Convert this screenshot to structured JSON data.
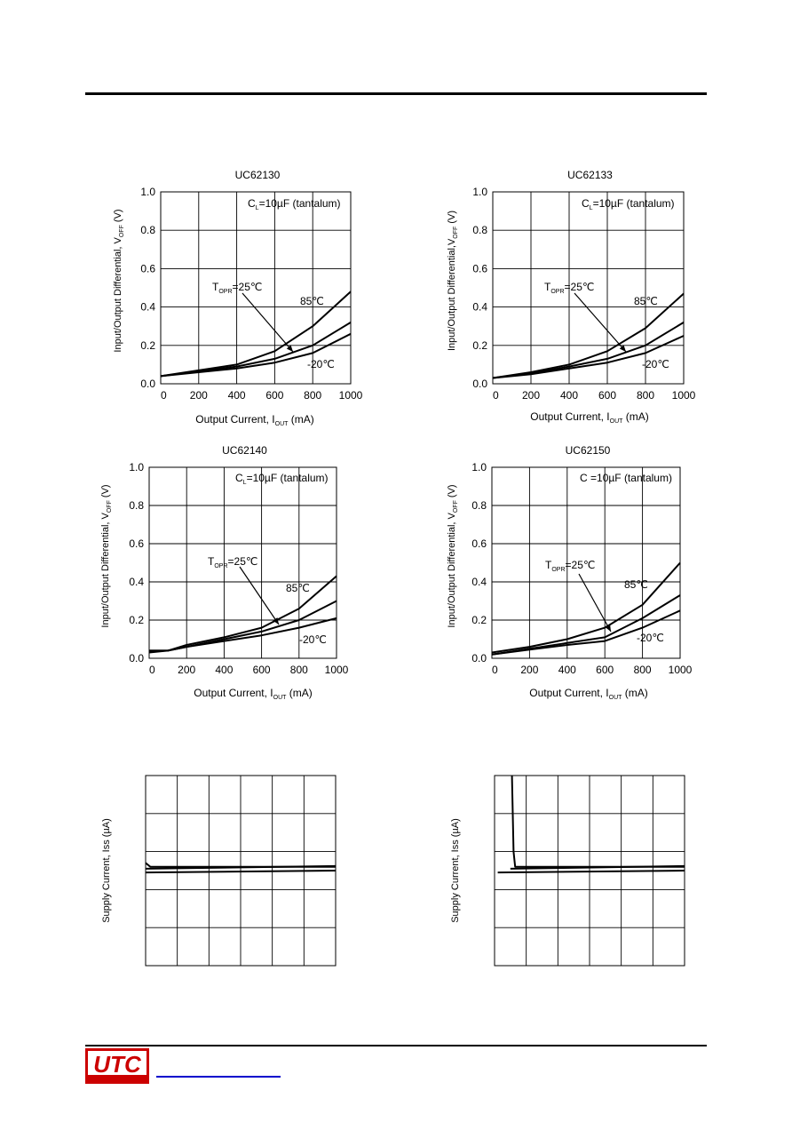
{
  "logo": {
    "text": "UTC",
    "color": "#cc0000"
  },
  "charts": [
    {
      "chart_data": {
        "type": "line",
        "title": "UC62130",
        "xlabel_main": "Output Current, I",
        "xlabel_sub": "OUT",
        "xlabel_unit": " (mA)",
        "ylabel_main": "Input/Output Differential, V",
        "ylabel_sub": "OFF",
        "ylabel_unit": " (V)",
        "xlim": [
          0,
          1000
        ],
        "ylim": [
          0,
          1.0
        ],
        "xticks": [
          "0",
          "200",
          "400",
          "600",
          "800",
          "1000"
        ],
        "yticks": [
          "0.0",
          "0.2",
          "0.4",
          "0.6",
          "0.8",
          "1.0"
        ],
        "grid": true,
        "condition": {
          "main": "C",
          "sub": "L",
          "rest": "=10µF (tantalum)"
        },
        "annotations": [
          {
            "main": "T",
            "sub": "OPR",
            "rest": "=25℃"
          },
          {
            "main": "85℃",
            "sub": "",
            "rest": ""
          },
          {
            "main": "-20℃",
            "sub": "",
            "rest": ""
          }
        ],
        "series": [
          {
            "x": [
              0,
              200,
              400,
              600,
              800,
              1000
            ],
            "values": [
              0.04,
              0.07,
              0.1,
              0.17,
              0.3,
              0.48
            ]
          },
          {
            "x": [
              0,
              200,
              400,
              600,
              800,
              1000
            ],
            "values": [
              0.04,
              0.065,
              0.09,
              0.13,
              0.2,
              0.32
            ]
          },
          {
            "x": [
              0,
              200,
              400,
              600,
              800,
              1000
            ],
            "values": [
              0.04,
              0.06,
              0.08,
              0.11,
              0.16,
              0.26
            ]
          }
        ]
      }
    },
    {
      "chart_data": {
        "type": "line",
        "title": "UC62133",
        "xlabel_main": "Output Current, I",
        "xlabel_sub": "OUT",
        "xlabel_unit": " (mA)",
        "ylabel_main": "Input/Output Differential,V",
        "ylabel_sub": "OFF",
        "ylabel_unit": " (V)",
        "xlim": [
          0,
          1000
        ],
        "ylim": [
          0,
          1.0
        ],
        "xticks": [
          "0",
          "200",
          "400",
          "600",
          "800",
          "1000"
        ],
        "yticks": [
          "0.0",
          "0.2",
          "0.4",
          "0.6",
          "0.8",
          "1.0"
        ],
        "grid": true,
        "condition": {
          "main": "C",
          "sub": "L",
          "rest": "=10µF (tantalum)"
        },
        "annotations": [
          {
            "main": "T",
            "sub": "OPR",
            "rest": "=25℃"
          },
          {
            "main": "85℃",
            "sub": "",
            "rest": ""
          },
          {
            "main": "-20℃",
            "sub": "",
            "rest": ""
          }
        ],
        "series": [
          {
            "x": [
              0,
              200,
              400,
              600,
              800,
              1000
            ],
            "values": [
              0.03,
              0.06,
              0.1,
              0.17,
              0.29,
              0.47
            ]
          },
          {
            "x": [
              0,
              200,
              400,
              600,
              800,
              1000
            ],
            "values": [
              0.03,
              0.055,
              0.09,
              0.13,
              0.2,
              0.32
            ]
          },
          {
            "x": [
              0,
              200,
              400,
              600,
              800,
              1000
            ],
            "values": [
              0.03,
              0.05,
              0.08,
              0.11,
              0.16,
              0.25
            ]
          }
        ]
      }
    },
    {
      "chart_data": {
        "type": "line",
        "title": "UC62140",
        "xlabel_main": "Output Current, I",
        "xlabel_sub": "OUT",
        "xlabel_unit": " (mA)",
        "ylabel_main": "Input/Output Differential, V",
        "ylabel_sub": "OFF",
        "ylabel_unit": " (V)",
        "xlim": [
          0,
          1000
        ],
        "ylim": [
          0,
          1.0
        ],
        "xticks": [
          "0",
          "200",
          "400",
          "600",
          "800",
          "1000"
        ],
        "yticks": [
          "0.0",
          "0.2",
          "0.4",
          "0.6",
          "0.8",
          "1.0"
        ],
        "grid": true,
        "condition": {
          "main": "C",
          "sub": "L",
          "rest": "=10µF (tantalum)"
        },
        "annotations": [
          {
            "main": "T",
            "sub": "OPR",
            "rest": "=25℃"
          },
          {
            "main": "85℃",
            "sub": "",
            "rest": ""
          },
          {
            "main": "-20℃",
            "sub": "",
            "rest": ""
          }
        ],
        "series": [
          {
            "x": [
              0,
              100,
              200,
              400,
              600,
              800,
              1000
            ],
            "values": [
              0.04,
              0.04,
              0.07,
              0.11,
              0.16,
              0.26,
              0.43
            ]
          },
          {
            "x": [
              0,
              100,
              200,
              400,
              600,
              800,
              1000
            ],
            "values": [
              0.04,
              0.04,
              0.06,
              0.1,
              0.14,
              0.2,
              0.3
            ]
          },
          {
            "x": [
              0,
              100,
              200,
              400,
              600,
              800,
              1000
            ],
            "values": [
              0.03,
              0.04,
              0.06,
              0.09,
              0.12,
              0.16,
              0.21
            ]
          }
        ]
      }
    },
    {
      "chart_data": {
        "type": "line",
        "title": "UC62150",
        "xlabel_main": "Output Current, I",
        "xlabel_sub": "OUT",
        "xlabel_unit": " (mA)",
        "ylabel_main": "Input/Output Differential, V",
        "ylabel_sub": "OFF",
        "ylabel_unit": " (V)",
        "xlim": [
          0,
          1000
        ],
        "ylim": [
          0,
          1.0
        ],
        "xticks": [
          "0",
          "200",
          "400",
          "600",
          "800",
          "1000"
        ],
        "yticks": [
          "0.0",
          "0.2",
          "0.4",
          "0.6",
          "0.8",
          "1.0"
        ],
        "grid": true,
        "condition": {
          "main": "C",
          "sub": "",
          "rest": "  =10µF (tantalum)"
        },
        "annotations": [
          {
            "main": "T",
            "sub": "OPR",
            "rest": "=25℃"
          },
          {
            "main": "85℃",
            "sub": "",
            "rest": ""
          },
          {
            "main": "-20℃",
            "sub": "",
            "rest": ""
          }
        ],
        "series": [
          {
            "x": [
              0,
              200,
              400,
              600,
              800,
              1000
            ],
            "values": [
              0.03,
              0.06,
              0.1,
              0.16,
              0.28,
              0.5
            ]
          },
          {
            "x": [
              0,
              200,
              400,
              600,
              800,
              1000
            ],
            "values": [
              0.02,
              0.05,
              0.08,
              0.11,
              0.21,
              0.33
            ]
          },
          {
            "x": [
              0,
              200,
              400,
              600,
              800,
              1000
            ],
            "values": [
              0.02,
              0.045,
              0.07,
              0.09,
              0.16,
              0.25
            ]
          }
        ]
      }
    },
    {
      "chart_data": {
        "type": "line",
        "title": "",
        "ylabel": "Supply Current, Iss (µA)",
        "xlim": [
          0,
          6
        ],
        "ylim": [
          0,
          5
        ],
        "grid": true,
        "series": [
          {
            "x": [
              0,
              0.15,
              6
            ],
            "values": [
              2.7,
              2.6,
              2.6
            ]
          },
          {
            "x": [
              0,
              6
            ],
            "values": [
              2.55,
              2.62
            ]
          },
          {
            "x": [
              0,
              6
            ],
            "values": [
              2.45,
              2.5
            ]
          }
        ]
      }
    },
    {
      "chart_data": {
        "type": "line",
        "title": "",
        "ylabel": "Supply Current, Iss (µA)",
        "xlim": [
          0,
          6
        ],
        "ylim": [
          0,
          5
        ],
        "grid": true,
        "series": [
          {
            "x": [
              0.55,
              0.6,
              0.65,
              6
            ],
            "values": [
              5.0,
              3.0,
              2.6,
              2.6
            ]
          },
          {
            "x": [
              0.5,
              6
            ],
            "values": [
              2.55,
              2.62
            ]
          },
          {
            "x": [
              0.1,
              6
            ],
            "values": [
              2.45,
              2.5
            ]
          }
        ]
      }
    }
  ]
}
